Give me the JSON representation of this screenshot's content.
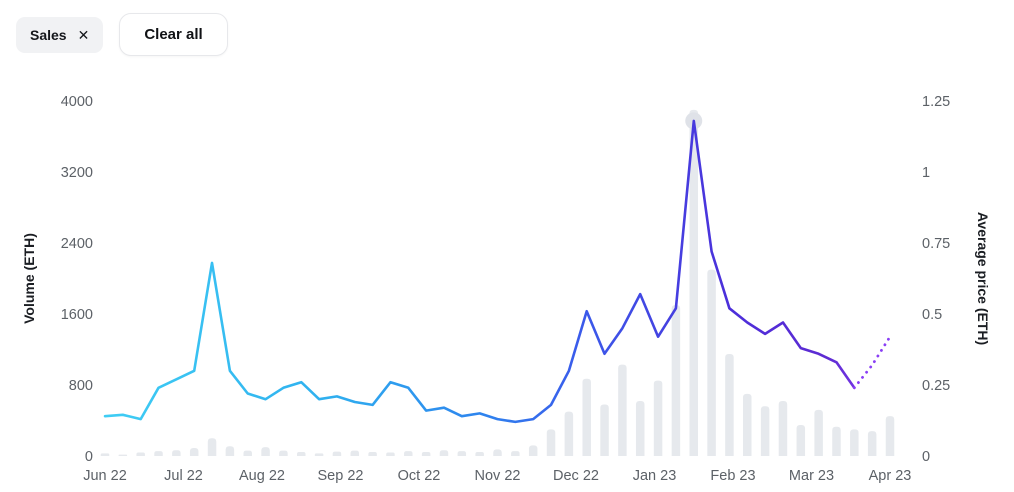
{
  "toolbar": {
    "filter_chip": {
      "label": "Sales",
      "close_icon": "✕"
    },
    "clear_all_label": "Clear all"
  },
  "chart_data": {
    "type": "composite",
    "x_tick_labels": [
      "Jun 22",
      "Jul 22",
      "Aug 22",
      "Sep 22",
      "Oct 22",
      "Nov 22",
      "Dec 22",
      "Jan 23",
      "Feb 23",
      "Mar 23",
      "Apr 23"
    ],
    "left_axis": {
      "title": "Volume (ETH)",
      "min": 0,
      "max": 4000,
      "ticks": [
        0,
        800,
        1600,
        2400,
        3200,
        4000
      ],
      "tick_labels": [
        "0",
        "800",
        "1600",
        "2400",
        "3200",
        "4000"
      ]
    },
    "right_axis": {
      "title": "Average price (ETH)",
      "min": 0,
      "max": 1.25,
      "ticks": [
        0,
        0.25,
        0.5,
        0.75,
        1,
        1.25
      ],
      "tick_labels": [
        "0",
        "0.25",
        "0.5",
        "0.75",
        "1",
        "1.25"
      ]
    },
    "grid": false,
    "legend": "none",
    "background": "#ffffff",
    "peak_marker_index": 33,
    "series": [
      {
        "name": "Volume",
        "type": "bar",
        "axis": "left",
        "color": "#e6e9ed",
        "bar_width": 8.5,
        "values": [
          30,
          15,
          40,
          55,
          65,
          90,
          200,
          110,
          60,
          100,
          60,
          45,
          30,
          50,
          60,
          45,
          40,
          55,
          45,
          65,
          55,
          45,
          75,
          55,
          120,
          300,
          500,
          870,
          580,
          1030,
          620,
          850,
          1700,
          3900,
          2100,
          1150,
          700,
          560,
          620,
          350,
          520,
          330,
          300,
          280,
          450
        ]
      },
      {
        "name": "Average price",
        "type": "line",
        "axis": "right",
        "dotted_from_index": 42,
        "dotted_color": "#8a3ff5",
        "gradient_stops": [
          [
            0,
            "#3fcdf4"
          ],
          [
            0.28,
            "#2fb0ef"
          ],
          [
            0.48,
            "#2e84ee"
          ],
          [
            0.6,
            "#3a5ceb"
          ],
          [
            0.7,
            "#4345e2"
          ],
          [
            0.8,
            "#4c2eda"
          ],
          [
            0.92,
            "#5e2bd2"
          ],
          [
            1,
            "#8a3ff5"
          ]
        ],
        "values": [
          0.14,
          0.145,
          0.13,
          0.24,
          0.27,
          0.3,
          0.68,
          0.3,
          0.22,
          0.2,
          0.24,
          0.26,
          0.2,
          0.21,
          0.19,
          0.18,
          0.26,
          0.24,
          0.16,
          0.17,
          0.14,
          0.15,
          0.13,
          0.12,
          0.13,
          0.18,
          0.3,
          0.51,
          0.36,
          0.45,
          0.57,
          0.42,
          0.52,
          1.18,
          0.72,
          0.52,
          0.47,
          0.43,
          0.47,
          0.38,
          0.36,
          0.33,
          0.24,
          0.32,
          0.42
        ]
      }
    ]
  }
}
